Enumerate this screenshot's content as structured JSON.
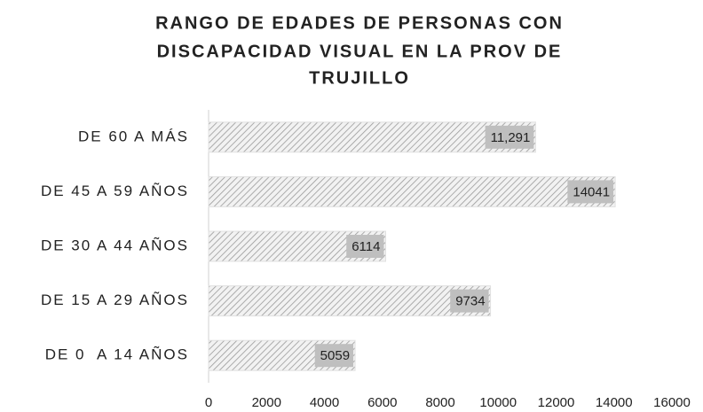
{
  "chart_data": {
    "type": "barh",
    "title": [
      "RANGO DE EDADES DE PERSONAS CON",
      "DISCAPACIDAD VISUAL EN LA PROV DE",
      "TRUJILLO"
    ],
    "categories": [
      "DE 60 A MÁS",
      "DE 45 A 59 AÑOS",
      "DE 30 A 44 AÑOS",
      "DE 15 A 29 AÑOS",
      "DE 0  A 14 AÑOS"
    ],
    "values": [
      11291,
      14041,
      6114,
      9734,
      5059
    ],
    "value_labels": [
      "11,291",
      "14041",
      "6114",
      "9734",
      "5059"
    ],
    "color": "#9a9a9a",
    "xlim": [
      0,
      16000
    ],
    "xticks": [
      0,
      2000,
      4000,
      6000,
      8000,
      10000,
      12000,
      14000,
      16000
    ],
    "grid": false
  }
}
